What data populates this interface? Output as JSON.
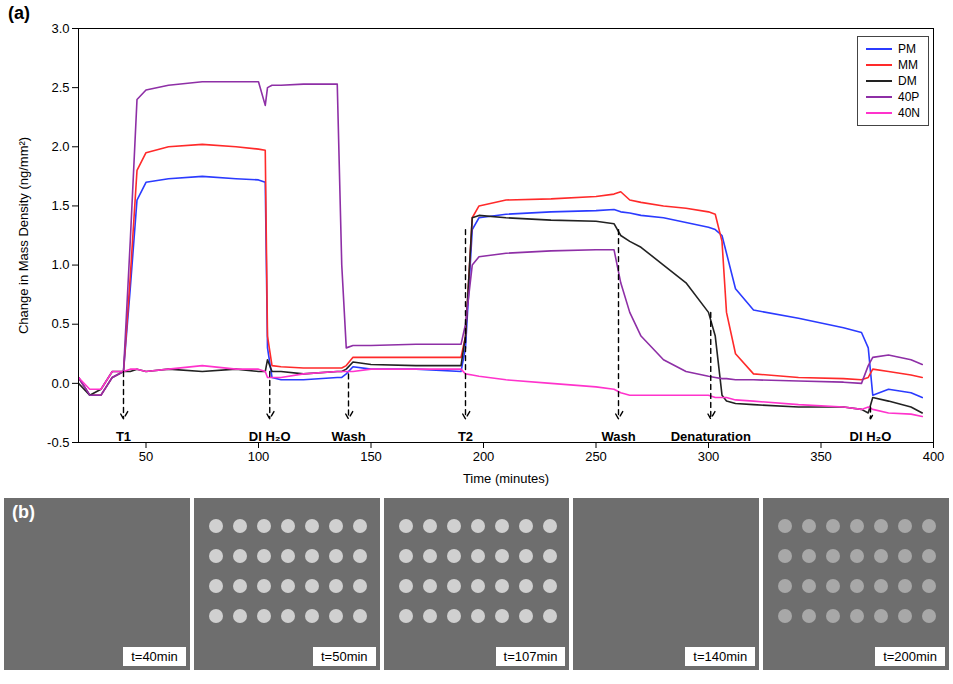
{
  "chart_data": {
    "type": "line",
    "panel_label": "(a)",
    "x_label": "Time (minutes)",
    "y_label": "Change in Mass Density (ng/mm²)",
    "xlim": [
      20,
      400
    ],
    "xticks": [
      50,
      100,
      150,
      200,
      250,
      300,
      350,
      400
    ],
    "ylim": [
      -0.5,
      3.0
    ],
    "yticks": [
      -0.5,
      {
        "value": 0,
        "label": "0.0"
      },
      0.5,
      {
        "value": 1,
        "label": "1.0"
      },
      1.5,
      {
        "value": 2,
        "label": "2.0"
      },
      2.5,
      {
        "value": 3,
        "label": "3.0"
      }
    ],
    "grid": false,
    "legend": "upper right",
    "x": [
      20,
      25,
      30,
      35,
      40,
      43,
      46,
      50,
      60,
      75,
      90,
      100,
      103,
      104,
      106,
      110,
      120,
      135,
      137,
      139,
      142,
      150,
      170,
      190,
      192,
      195,
      198,
      210,
      230,
      250,
      258,
      261,
      265,
      270,
      280,
      290,
      300,
      303,
      306,
      308,
      312,
      320,
      340,
      360,
      368,
      371,
      373,
      380,
      390,
      395
    ],
    "series": [
      {
        "name": "PM",
        "color": "#2b3bff",
        "values": [
          0.05,
          -0.1,
          -0.1,
          0.05,
          0.1,
          0.8,
          1.55,
          1.7,
          1.73,
          1.75,
          1.73,
          1.72,
          1.7,
          0.3,
          0.05,
          0.03,
          0.03,
          0.05,
          0.05,
          0.08,
          0.14,
          0.12,
          0.12,
          0.1,
          0.3,
          1.3,
          1.4,
          1.43,
          1.45,
          1.46,
          1.47,
          1.45,
          1.44,
          1.42,
          1.4,
          1.36,
          1.32,
          1.3,
          1.25,
          1.1,
          0.8,
          0.62,
          0.55,
          0.47,
          0.43,
          0.3,
          -0.1,
          -0.05,
          -0.08,
          -0.12
        ]
      },
      {
        "name": "MM",
        "color": "#ff2a2a",
        "values": [
          0.05,
          -0.1,
          -0.1,
          0.05,
          0.1,
          0.9,
          1.8,
          1.95,
          2.0,
          2.02,
          2.0,
          1.98,
          1.97,
          0.4,
          0.15,
          0.14,
          0.13,
          0.13,
          0.13,
          0.15,
          0.22,
          0.22,
          0.22,
          0.22,
          0.4,
          1.4,
          1.5,
          1.55,
          1.56,
          1.58,
          1.6,
          1.62,
          1.55,
          1.53,
          1.5,
          1.48,
          1.45,
          1.43,
          1.2,
          0.6,
          0.25,
          0.08,
          0.05,
          0.04,
          0.03,
          0.05,
          0.12,
          0.1,
          0.07,
          0.05
        ]
      },
      {
        "name": "DM",
        "color": "#222222",
        "values": [
          0.0,
          -0.1,
          -0.05,
          0.1,
          0.1,
          0.1,
          0.12,
          0.1,
          0.12,
          0.1,
          0.12,
          0.1,
          0.1,
          0.2,
          0.1,
          0.1,
          0.08,
          0.1,
          0.1,
          0.12,
          0.18,
          0.16,
          0.15,
          0.15,
          0.4,
          1.4,
          1.42,
          1.4,
          1.38,
          1.37,
          1.35,
          1.25,
          1.2,
          1.15,
          1.0,
          0.85,
          0.6,
          0.4,
          -0.1,
          -0.15,
          -0.17,
          -0.18,
          -0.2,
          -0.2,
          -0.22,
          -0.25,
          -0.12,
          -0.15,
          -0.2,
          -0.25
        ]
      },
      {
        "name": "40P",
        "color": "#8e2fa6",
        "values": [
          0.05,
          -0.1,
          -0.1,
          0.05,
          0.1,
          1.2,
          2.4,
          2.48,
          2.52,
          2.55,
          2.55,
          2.55,
          2.35,
          2.5,
          2.52,
          2.52,
          2.53,
          2.53,
          1.0,
          0.3,
          0.32,
          0.32,
          0.33,
          0.33,
          0.5,
          1.0,
          1.07,
          1.1,
          1.12,
          1.13,
          1.13,
          0.85,
          0.6,
          0.4,
          0.2,
          0.1,
          0.06,
          0.05,
          0.04,
          0.04,
          0.03,
          0.03,
          0.02,
          0.01,
          0.0,
          0.15,
          0.22,
          0.24,
          0.2,
          0.16
        ]
      },
      {
        "name": "40N",
        "color": "#ff33cc",
        "values": [
          0.05,
          -0.05,
          -0.05,
          0.1,
          0.1,
          0.12,
          0.12,
          0.1,
          0.12,
          0.15,
          0.12,
          0.12,
          0.1,
          0.05,
          0.05,
          0.05,
          0.08,
          0.1,
          0.1,
          0.1,
          0.1,
          0.12,
          0.12,
          0.12,
          0.08,
          0.07,
          0.06,
          0.03,
          0.0,
          -0.03,
          -0.05,
          -0.08,
          -0.1,
          -0.1,
          -0.1,
          -0.1,
          -0.1,
          -0.12,
          -0.12,
          -0.12,
          -0.14,
          -0.15,
          -0.18,
          -0.2,
          -0.22,
          -0.2,
          -0.22,
          -0.25,
          -0.26,
          -0.28
        ]
      }
    ],
    "annotations": [
      {
        "text": "T1",
        "x": 40,
        "y": 0.1,
        "y_to": -0.3
      },
      {
        "text": "DI H₂O",
        "x": 105,
        "y": 0.1,
        "y_to": -0.3
      },
      {
        "text": "Wash",
        "x": 140,
        "y": 0.08,
        "y_to": -0.3
      },
      {
        "text": "T2",
        "x": 192,
        "y": 1.3,
        "y_to": -0.3
      },
      {
        "text": "Wash",
        "x": 260,
        "y": 1.3,
        "y_to": -0.3
      },
      {
        "text": "Denaturation",
        "x": 301,
        "y": 0.6,
        "y_to": -0.3
      },
      {
        "text": "DI H₂O",
        "x": 372,
        "y": -0.2,
        "y_to": -0.3
      }
    ]
  },
  "images": {
    "panel_label": "(b)",
    "labels": [
      "t=40min",
      "t=50min",
      "t=107min",
      "t=140min",
      "t=200min"
    ]
  }
}
